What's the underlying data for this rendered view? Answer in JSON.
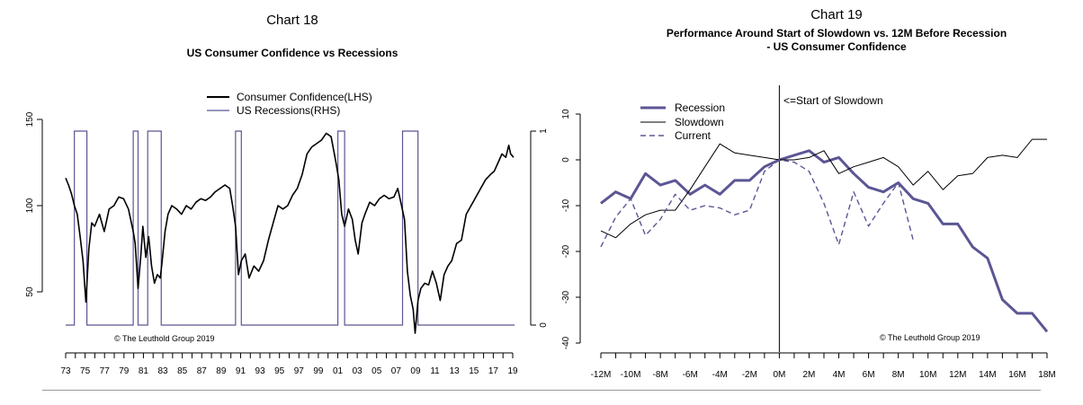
{
  "chart18": {
    "label": "Chart 18",
    "title": "US Consumer Confidence vs Recessions",
    "copyright": "© The Leuthold Group 2019",
    "legend": [
      "Consumer Confidence(LHS)",
      "US Recessions(RHS)"
    ],
    "colors": {
      "confidence": "#000000",
      "recession": "#5b5694"
    },
    "chart_data": {
      "type": "line",
      "title": "US Consumer Confidence vs Recessions",
      "xlim": [
        1973,
        2019.5
      ],
      "ylim_left": [
        25,
        150
      ],
      "ylim_right": [
        0,
        1
      ],
      "y_ticks_left": [
        50,
        100,
        150
      ],
      "y_ticks_right": [
        0,
        1
      ],
      "x_tick_labels": [
        "73",
        "75",
        "77",
        "79",
        "81",
        "83",
        "85",
        "87",
        "89",
        "91",
        "93",
        "95",
        "97",
        "99",
        "01",
        "03",
        "05",
        "07",
        "09",
        "11",
        "13",
        "15",
        "17",
        "19"
      ],
      "series": [
        {
          "name": "Consumer Confidence(LHS)",
          "axis": "left",
          "x": [
            1973.0,
            1973.3,
            1973.6,
            1973.9,
            1974.2,
            1974.5,
            1974.8,
            1975.1,
            1975.4,
            1975.7,
            1976.0,
            1976.5,
            1977.0,
            1977.5,
            1978.0,
            1978.5,
            1979.0,
            1979.5,
            1980.0,
            1980.2,
            1980.5,
            1980.8,
            1981.0,
            1981.3,
            1981.6,
            1981.9,
            1982.2,
            1982.5,
            1982.8,
            1983.0,
            1983.3,
            1983.6,
            1984.0,
            1984.5,
            1985.0,
            1985.5,
            1986.0,
            1986.5,
            1987.0,
            1987.5,
            1988.0,
            1988.5,
            1989.0,
            1989.5,
            1990.0,
            1990.3,
            1990.6,
            1990.9,
            1991.2,
            1991.6,
            1992.0,
            1992.5,
            1993.0,
            1993.5,
            1994.0,
            1994.5,
            1995.0,
            1995.5,
            1996.0,
            1996.5,
            1997.0,
            1997.5,
            1998.0,
            1998.5,
            1999.0,
            1999.5,
            2000.0,
            2000.5,
            2001.0,
            2001.3,
            2001.6,
            2001.9,
            2002.3,
            2002.7,
            2003.0,
            2003.3,
            2003.7,
            2004.0,
            2004.5,
            2005.0,
            2005.5,
            2006.0,
            2006.5,
            2007.0,
            2007.4,
            2007.8,
            2008.1,
            2008.4,
            2008.7,
            2009.0,
            2009.2,
            2009.5,
            2009.8,
            2010.2,
            2010.6,
            2011.0,
            2011.4,
            2011.8,
            2012.2,
            2012.6,
            2013.0,
            2013.5,
            2014.0,
            2014.5,
            2015.0,
            2015.5,
            2016.0,
            2016.5,
            2017.0,
            2017.4,
            2017.8,
            2018.2,
            2018.6,
            2018.9,
            2019.1,
            2019.4
          ],
          "y": [
            116,
            112,
            107,
            100,
            95,
            82,
            68,
            44,
            75,
            90,
            88,
            95,
            85,
            98,
            100,
            105,
            104,
            98,
            85,
            78,
            52,
            72,
            88,
            70,
            82,
            65,
            55,
            60,
            58,
            68,
            85,
            95,
            100,
            98,
            95,
            100,
            98,
            102,
            104,
            103,
            105,
            108,
            110,
            112,
            110,
            100,
            88,
            60,
            68,
            72,
            58,
            65,
            62,
            68,
            80,
            90,
            100,
            98,
            100,
            106,
            110,
            118,
            130,
            134,
            136,
            138,
            142,
            140,
            125,
            115,
            95,
            88,
            98,
            92,
            80,
            72,
            90,
            95,
            102,
            100,
            104,
            106,
            104,
            105,
            110,
            100,
            92,
            62,
            48,
            40,
            26,
            45,
            52,
            55,
            54,
            62,
            55,
            45,
            60,
            65,
            68,
            78,
            80,
            95,
            100,
            105,
            110,
            115,
            118,
            120,
            125,
            130,
            128,
            135,
            130,
            128
          ]
        },
        {
          "name": "US Recessions(RHS)",
          "axis": "right",
          "recession_periods": [
            [
              1973.9,
              1975.2
            ],
            [
              1980.0,
              1980.5
            ],
            [
              1981.5,
              1982.9
            ],
            [
              1990.6,
              1991.2
            ],
            [
              2001.2,
              2001.9
            ],
            [
              2007.9,
              2009.5
            ]
          ]
        }
      ]
    }
  },
  "chart19": {
    "label": "Chart 19",
    "title_line1": "Performance Around Start of Slowdown vs. 12M Before Recession",
    "title_line2": "- US Consumer Confidence",
    "annotation": "<=Start of Slowdown",
    "copyright": "© The Leuthold Group 2019",
    "legend": [
      "Recession",
      "Slowdown",
      "Current"
    ],
    "colors": {
      "recession": "#5b5694",
      "slowdown": "#000000",
      "current": "#5b5694"
    },
    "chart_data": {
      "type": "line",
      "title": "Performance Around Start of Slowdown vs. 12M Before Recession - US Consumer Confidence",
      "x_tick_labels": [
        "-12M",
        "-10M",
        "-8M",
        "-6M",
        "-4M",
        "-2M",
        "0M",
        "2M",
        "4M",
        "6M",
        "8M",
        "10M",
        "12M",
        "14M",
        "16M",
        "18M"
      ],
      "xlim": [
        -12,
        18
      ],
      "ylim": [
        -40,
        10
      ],
      "y_ticks": [
        -40,
        -30,
        -20,
        -10,
        0,
        10
      ],
      "series": [
        {
          "name": "Recession",
          "x": [
            -12,
            -11,
            -10,
            -9,
            -8,
            -7,
            -6,
            -5,
            -4,
            -3,
            -2,
            -1,
            0,
            1,
            2,
            3,
            4,
            5,
            6,
            7,
            8,
            9,
            10,
            11,
            12,
            13,
            14,
            15,
            16,
            17,
            18
          ],
          "y": [
            -9.5,
            -7,
            -8.5,
            -3,
            -5.5,
            -4.5,
            -7.5,
            -5.5,
            -7.5,
            -4.5,
            -4.5,
            -1.5,
            0,
            1,
            2,
            -0.5,
            0.5,
            -3,
            -6,
            -7,
            -5,
            -8.5,
            -9.5,
            -14,
            -14,
            -19,
            -21.5,
            -30.5,
            -33.5,
            -33.5,
            -37.5
          ]
        },
        {
          "name": "Slowdown",
          "x": [
            -12,
            -11,
            -10,
            -9,
            -8,
            -7,
            -6,
            -5,
            -4,
            -3,
            -2,
            -1,
            0,
            1,
            2,
            3,
            4,
            5,
            6,
            7,
            8,
            9,
            10,
            11,
            12,
            13,
            14,
            15,
            16,
            17,
            18
          ],
          "y": [
            -15.5,
            -17,
            -14,
            -12,
            -11,
            -11,
            -6.5,
            -1.5,
            3.5,
            1.5,
            1,
            0.5,
            0,
            0,
            0.5,
            2,
            -3,
            -1.5,
            -0.5,
            0.5,
            -1.5,
            -5.5,
            -2.5,
            -6.5,
            -3.5,
            -3,
            0.5,
            1,
            0.5,
            4.5,
            4.5
          ]
        },
        {
          "name": "Current",
          "x": [
            -12,
            -11,
            -10,
            -9,
            -8,
            -7,
            -6,
            -5,
            -4,
            -3,
            -2,
            -1,
            0,
            1,
            2,
            3,
            4,
            5,
            6,
            7,
            8,
            9
          ],
          "y": [
            -19,
            -12.5,
            -8.5,
            -16.5,
            -13,
            -7.5,
            -11,
            -10,
            -10.5,
            -12,
            -11,
            -2.5,
            0,
            -0.5,
            -2.5,
            -9.5,
            -18.5,
            -7,
            -14.5,
            -9.5,
            -5,
            -17.5
          ]
        }
      ]
    }
  }
}
